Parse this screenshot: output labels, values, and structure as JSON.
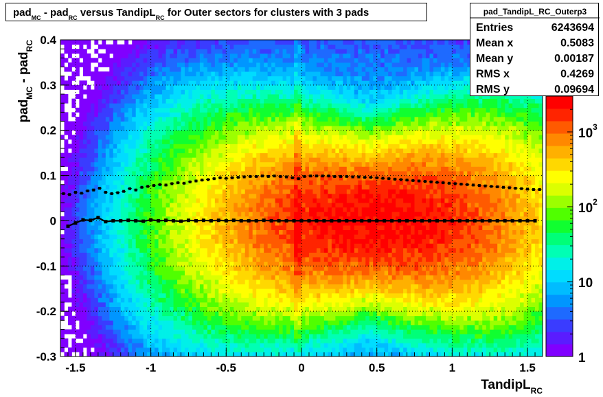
{
  "chart_data": {
    "type": "heatmap",
    "title": {
      "parts": [
        {
          "t": "pad",
          "sub": "MC"
        },
        {
          "t": " - pad",
          "sub": "RC"
        },
        {
          "t": " versus TandipL",
          "sub": "RC"
        },
        {
          "t": " for Outer sectors for clusters with 3 pads",
          "sub": ""
        }
      ]
    },
    "xlabel": {
      "t": "TandipL",
      "sub": "RC"
    },
    "ylabel": {
      "parts": [
        {
          "t": "pad",
          "sub": "MC"
        },
        {
          "t": " - pad",
          "sub": "RC"
        }
      ]
    },
    "xlim": [
      -1.6,
      1.6
    ],
    "ylim": [
      -0.3,
      0.4
    ],
    "x_ticks": [
      {
        "v": -1.5,
        "label": "-1.5"
      },
      {
        "v": -1,
        "label": "-1"
      },
      {
        "v": -0.5,
        "label": "-0.5"
      },
      {
        "v": 0,
        "label": "0"
      },
      {
        "v": 0.5,
        "label": "0.5"
      },
      {
        "v": 1,
        "label": "1"
      },
      {
        "v": 1.5,
        "label": "1.5"
      }
    ],
    "y_ticks": [
      {
        "v": -0.3,
        "label": "-0.3"
      },
      {
        "v": -0.2,
        "label": "-0.2"
      },
      {
        "v": -0.1,
        "label": "-0.1"
      },
      {
        "v": 0,
        "label": "0"
      },
      {
        "v": 0.1,
        "label": "0.1"
      },
      {
        "v": 0.2,
        "label": "0.2"
      },
      {
        "v": 0.3,
        "label": "0.3"
      },
      {
        "v": 0.4,
        "label": "0.4"
      }
    ],
    "grid": true,
    "z_scale": "log",
    "z_range": [
      1,
      3000
    ],
    "z_ticks": [
      {
        "v": 1,
        "label": "1",
        "sup": ""
      },
      {
        "v": 10,
        "label": "10",
        "sup": ""
      },
      {
        "v": 100,
        "label": "10",
        "sup": "2"
      },
      {
        "v": 1000,
        "label": "10",
        "sup": "3"
      }
    ],
    "palette": [
      "#8000ff",
      "#5a1cff",
      "#3a3cff",
      "#1e6aff",
      "#0096ff",
      "#00bcff",
      "#00dcff",
      "#00f0e8",
      "#00ffb4",
      "#00ff78",
      "#10ff30",
      "#50ff00",
      "#9cff00",
      "#dcff00",
      "#ffff00",
      "#ffd800",
      "#ffb000",
      "#ff8800",
      "#ff5a00",
      "#ff2400",
      "#ff0000"
    ],
    "series": [
      {
        "name": "mean",
        "points": [
          [
            -1.55,
            -0.012
          ],
          [
            -1.5,
            -0.005
          ],
          [
            -1.45,
            0.002
          ],
          [
            -1.4,
            0.001
          ],
          [
            -1.35,
            0.007
          ],
          [
            -1.3,
            -0.002
          ],
          [
            -1.25,
            0.0
          ],
          [
            -1.2,
            0.0
          ],
          [
            -1.15,
            0.001
          ],
          [
            -1.1,
            0.0
          ],
          [
            -1.05,
            -0.001
          ],
          [
            -1.0,
            0.002
          ],
          [
            -0.95,
            0.0
          ],
          [
            -0.9,
            0.001
          ],
          [
            -0.85,
            0.0
          ],
          [
            -0.8,
            -0.001
          ],
          [
            -0.75,
            0.001
          ],
          [
            -0.7,
            0.0
          ],
          [
            -0.65,
            0.001
          ],
          [
            -0.6,
            0.0
          ],
          [
            -0.55,
            0.001
          ],
          [
            -0.5,
            0.0
          ],
          [
            -0.45,
            0.001
          ],
          [
            -0.4,
            0.0
          ],
          [
            -0.35,
            0.0
          ],
          [
            -0.3,
            0.0
          ],
          [
            -0.25,
            0.001
          ],
          [
            -0.2,
            0.0
          ],
          [
            -0.15,
            0.0
          ],
          [
            -0.1,
            0.0
          ],
          [
            -0.05,
            0.0
          ],
          [
            0.0,
            0.0
          ],
          [
            0.05,
            0.0
          ],
          [
            0.1,
            0.0
          ],
          [
            0.15,
            0.0
          ],
          [
            0.2,
            0.0
          ],
          [
            0.25,
            0.0
          ],
          [
            0.3,
            0.0
          ],
          [
            0.35,
            0.0
          ],
          [
            0.4,
            0.0
          ],
          [
            0.45,
            0.0
          ],
          [
            0.5,
            0.0
          ],
          [
            0.55,
            0.0
          ],
          [
            0.6,
            0.0
          ],
          [
            0.65,
            0.0
          ],
          [
            0.7,
            0.0
          ],
          [
            0.75,
            0.0
          ],
          [
            0.8,
            0.0
          ],
          [
            0.85,
            0.0
          ],
          [
            0.9,
            0.0
          ],
          [
            0.95,
            0.0
          ],
          [
            1.0,
            0.0
          ],
          [
            1.05,
            0.0
          ],
          [
            1.1,
            0.0
          ],
          [
            1.15,
            0.0
          ],
          [
            1.2,
            0.0
          ],
          [
            1.25,
            0.0
          ],
          [
            1.3,
            0.0
          ],
          [
            1.35,
            0.0
          ],
          [
            1.4,
            0.0
          ],
          [
            1.45,
            0.0
          ],
          [
            1.5,
            0.0
          ],
          [
            1.55,
            0.0
          ]
        ]
      },
      {
        "name": "rms",
        "points": [
          [
            -1.58,
            0.06
          ],
          [
            -1.54,
            0.058
          ],
          [
            -1.5,
            0.063
          ],
          [
            -1.46,
            0.061
          ],
          [
            -1.42,
            0.066
          ],
          [
            -1.38,
            0.068
          ],
          [
            -1.34,
            0.072
          ],
          [
            -1.3,
            0.063
          ],
          [
            -1.26,
            0.06
          ],
          [
            -1.22,
            0.062
          ],
          [
            -1.18,
            0.065
          ],
          [
            -1.14,
            0.071
          ],
          [
            -1.1,
            0.068
          ],
          [
            -1.06,
            0.074
          ],
          [
            -1.02,
            0.076
          ],
          [
            -0.98,
            0.078
          ],
          [
            -0.94,
            0.08
          ],
          [
            -0.9,
            0.079
          ],
          [
            -0.86,
            0.082
          ],
          [
            -0.82,
            0.084
          ],
          [
            -0.78,
            0.083
          ],
          [
            -0.74,
            0.086
          ],
          [
            -0.7,
            0.088
          ],
          [
            -0.66,
            0.09
          ],
          [
            -0.62,
            0.091
          ],
          [
            -0.58,
            0.093
          ],
          [
            -0.54,
            0.095
          ],
          [
            -0.5,
            0.094
          ],
          [
            -0.46,
            0.095
          ],
          [
            -0.42,
            0.096
          ],
          [
            -0.38,
            0.097
          ],
          [
            -0.34,
            0.098
          ],
          [
            -0.3,
            0.098
          ],
          [
            -0.26,
            0.099
          ],
          [
            -0.22,
            0.098
          ],
          [
            -0.18,
            0.099
          ],
          [
            -0.14,
            0.098
          ],
          [
            -0.1,
            0.097
          ],
          [
            -0.06,
            0.095
          ],
          [
            -0.02,
            0.093
          ],
          [
            0.02,
            0.098
          ],
          [
            0.06,
            0.099
          ],
          [
            0.1,
            0.099
          ],
          [
            0.14,
            0.099
          ],
          [
            0.18,
            0.099
          ],
          [
            0.22,
            0.098
          ],
          [
            0.26,
            0.098
          ],
          [
            0.3,
            0.098
          ],
          [
            0.34,
            0.097
          ],
          [
            0.38,
            0.097
          ],
          [
            0.42,
            0.096
          ],
          [
            0.46,
            0.096
          ],
          [
            0.5,
            0.095
          ],
          [
            0.54,
            0.094
          ],
          [
            0.58,
            0.093
          ],
          [
            0.62,
            0.092
          ],
          [
            0.66,
            0.091
          ],
          [
            0.7,
            0.09
          ],
          [
            0.74,
            0.089
          ],
          [
            0.78,
            0.088
          ],
          [
            0.82,
            0.087
          ],
          [
            0.86,
            0.086
          ],
          [
            0.9,
            0.085
          ],
          [
            0.94,
            0.084
          ],
          [
            0.98,
            0.083
          ],
          [
            1.02,
            0.082
          ],
          [
            1.06,
            0.081
          ],
          [
            1.1,
            0.08
          ],
          [
            1.14,
            0.079
          ],
          [
            1.18,
            0.078
          ],
          [
            1.22,
            0.077
          ],
          [
            1.26,
            0.076
          ],
          [
            1.3,
            0.075
          ],
          [
            1.34,
            0.074
          ],
          [
            1.38,
            0.073
          ],
          [
            1.42,
            0.072
          ],
          [
            1.46,
            0.071
          ],
          [
            1.5,
            0.07
          ],
          [
            1.54,
            0.069
          ],
          [
            1.58,
            0.069
          ]
        ]
      }
    ],
    "stats": {
      "name": "pad_TandipL_RC_Outerp3",
      "rows": [
        {
          "label": "Entries",
          "value": "6243694"
        },
        {
          "label": "Mean x",
          "value": "0.5083"
        },
        {
          "label": "Mean y",
          "value": "0.00187"
        },
        {
          "label": "RMS x",
          "value": "0.4269"
        },
        {
          "label": "RMS y",
          "value": "0.09694"
        }
      ]
    }
  }
}
